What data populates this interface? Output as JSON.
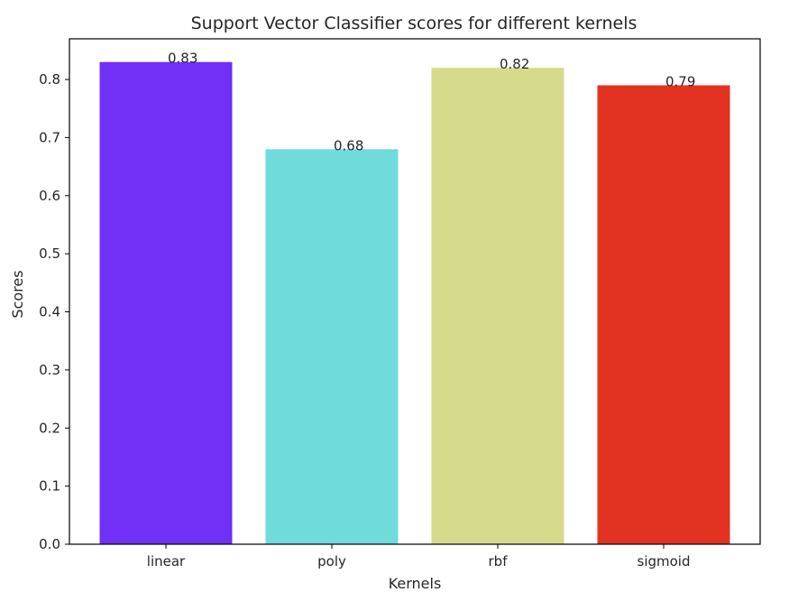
{
  "chart_data": {
    "type": "bar",
    "title": "Support Vector Classifier scores for different kernels",
    "xlabel": "Kernels",
    "ylabel": "Scores",
    "categories": [
      "linear",
      "poly",
      "rbf",
      "sigmoid"
    ],
    "values": [
      0.83,
      0.68,
      0.82,
      0.79
    ],
    "value_labels": [
      "0.83",
      "0.68",
      "0.82",
      "0.79"
    ],
    "colors": [
      "#7030f5",
      "#70dbdb",
      "#d6db8b",
      "#e23321"
    ],
    "ylim": [
      0,
      0.87
    ],
    "yticks": [
      0.0,
      0.1,
      0.2,
      0.3,
      0.4,
      0.5,
      0.6,
      0.7,
      0.8
    ],
    "ytick_labels": [
      "0.0",
      "0.1",
      "0.2",
      "0.3",
      "0.4",
      "0.5",
      "0.6",
      "0.7",
      "0.8"
    ],
    "grid": false,
    "legend": "none"
  }
}
